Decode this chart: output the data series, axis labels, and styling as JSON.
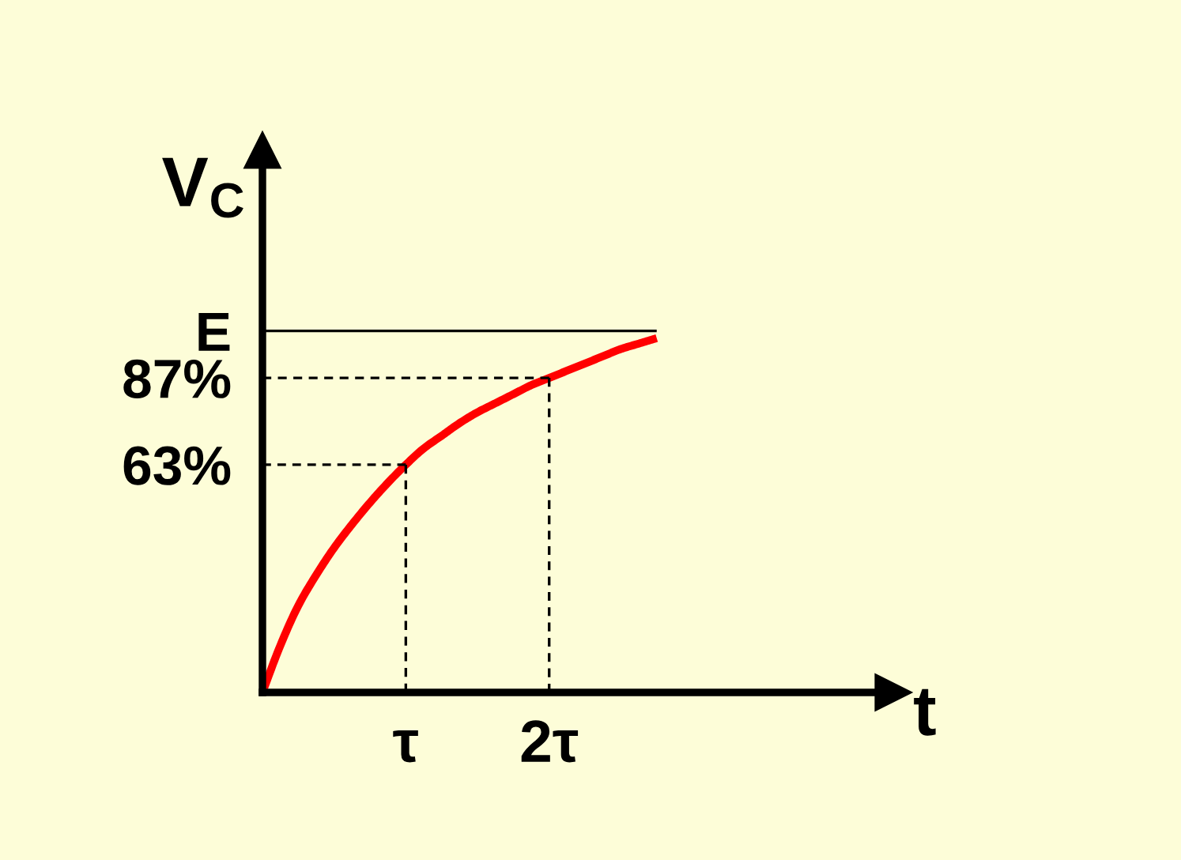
{
  "chart_data": {
    "type": "line",
    "xlabel": "t",
    "ylabel": "V$_{C}$",
    "categories": [
      null,
      null,
      null,
      null,
      null,
      null,
      null,
      null,
      "τ",
      null,
      null,
      null,
      null,
      null,
      null,
      null,
      "2τ",
      null,
      null,
      null,
      null,
      null,
      null
    ],
    "ylim": [
      0,
      150
    ],
    "yticks": [
      {
        "value": 63,
        "label": "63%"
      },
      {
        "value": 87,
        "label": "87%"
      },
      {
        "value": 100,
        "label": "E"
      }
    ],
    "series": [
      {
        "color": "#ff0000",
        "line_style": "solid",
        "values": [
          0,
          13,
          24,
          32.5,
          40,
          46.5,
          52.5,
          58,
          63,
          67.5,
          71,
          74.5,
          77.5,
          80,
          82.5,
          85,
          87,
          89,
          91,
          93,
          95,
          96.5,
          98
        ]
      },
      {
        "color": "#000000",
        "line_style": "solid",
        "values": [
          100,
          100,
          100,
          100,
          100,
          100,
          100,
          100,
          100,
          100,
          100,
          100,
          100,
          100,
          100,
          100,
          100,
          100,
          100,
          100,
          100,
          100,
          100
        ]
      },
      {
        "color": "#000000",
        "line_style": "dashed",
        "values": [
          63,
          63,
          63,
          63,
          63,
          63,
          63,
          63,
          63,
          null,
          null,
          null,
          null,
          null,
          null,
          null,
          null,
          null,
          null,
          null,
          null,
          null,
          null
        ]
      },
      {
        "color": "#000000",
        "line_style": "dashed",
        "x": [
          "τ",
          "τ"
        ],
        "values": [
          63,
          0
        ]
      },
      {
        "color": "#000000",
        "line_style": "dashed",
        "values": [
          87,
          87,
          87,
          87,
          87,
          87,
          87,
          87,
          87,
          87,
          87,
          87,
          87,
          87,
          87,
          87,
          87,
          null,
          null,
          null,
          null,
          null,
          null
        ]
      },
      {
        "color": "#000000",
        "line_style": "dashed",
        "x": [
          "2τ",
          "2τ"
        ],
        "values": [
          87,
          0
        ]
      }
    ]
  }
}
